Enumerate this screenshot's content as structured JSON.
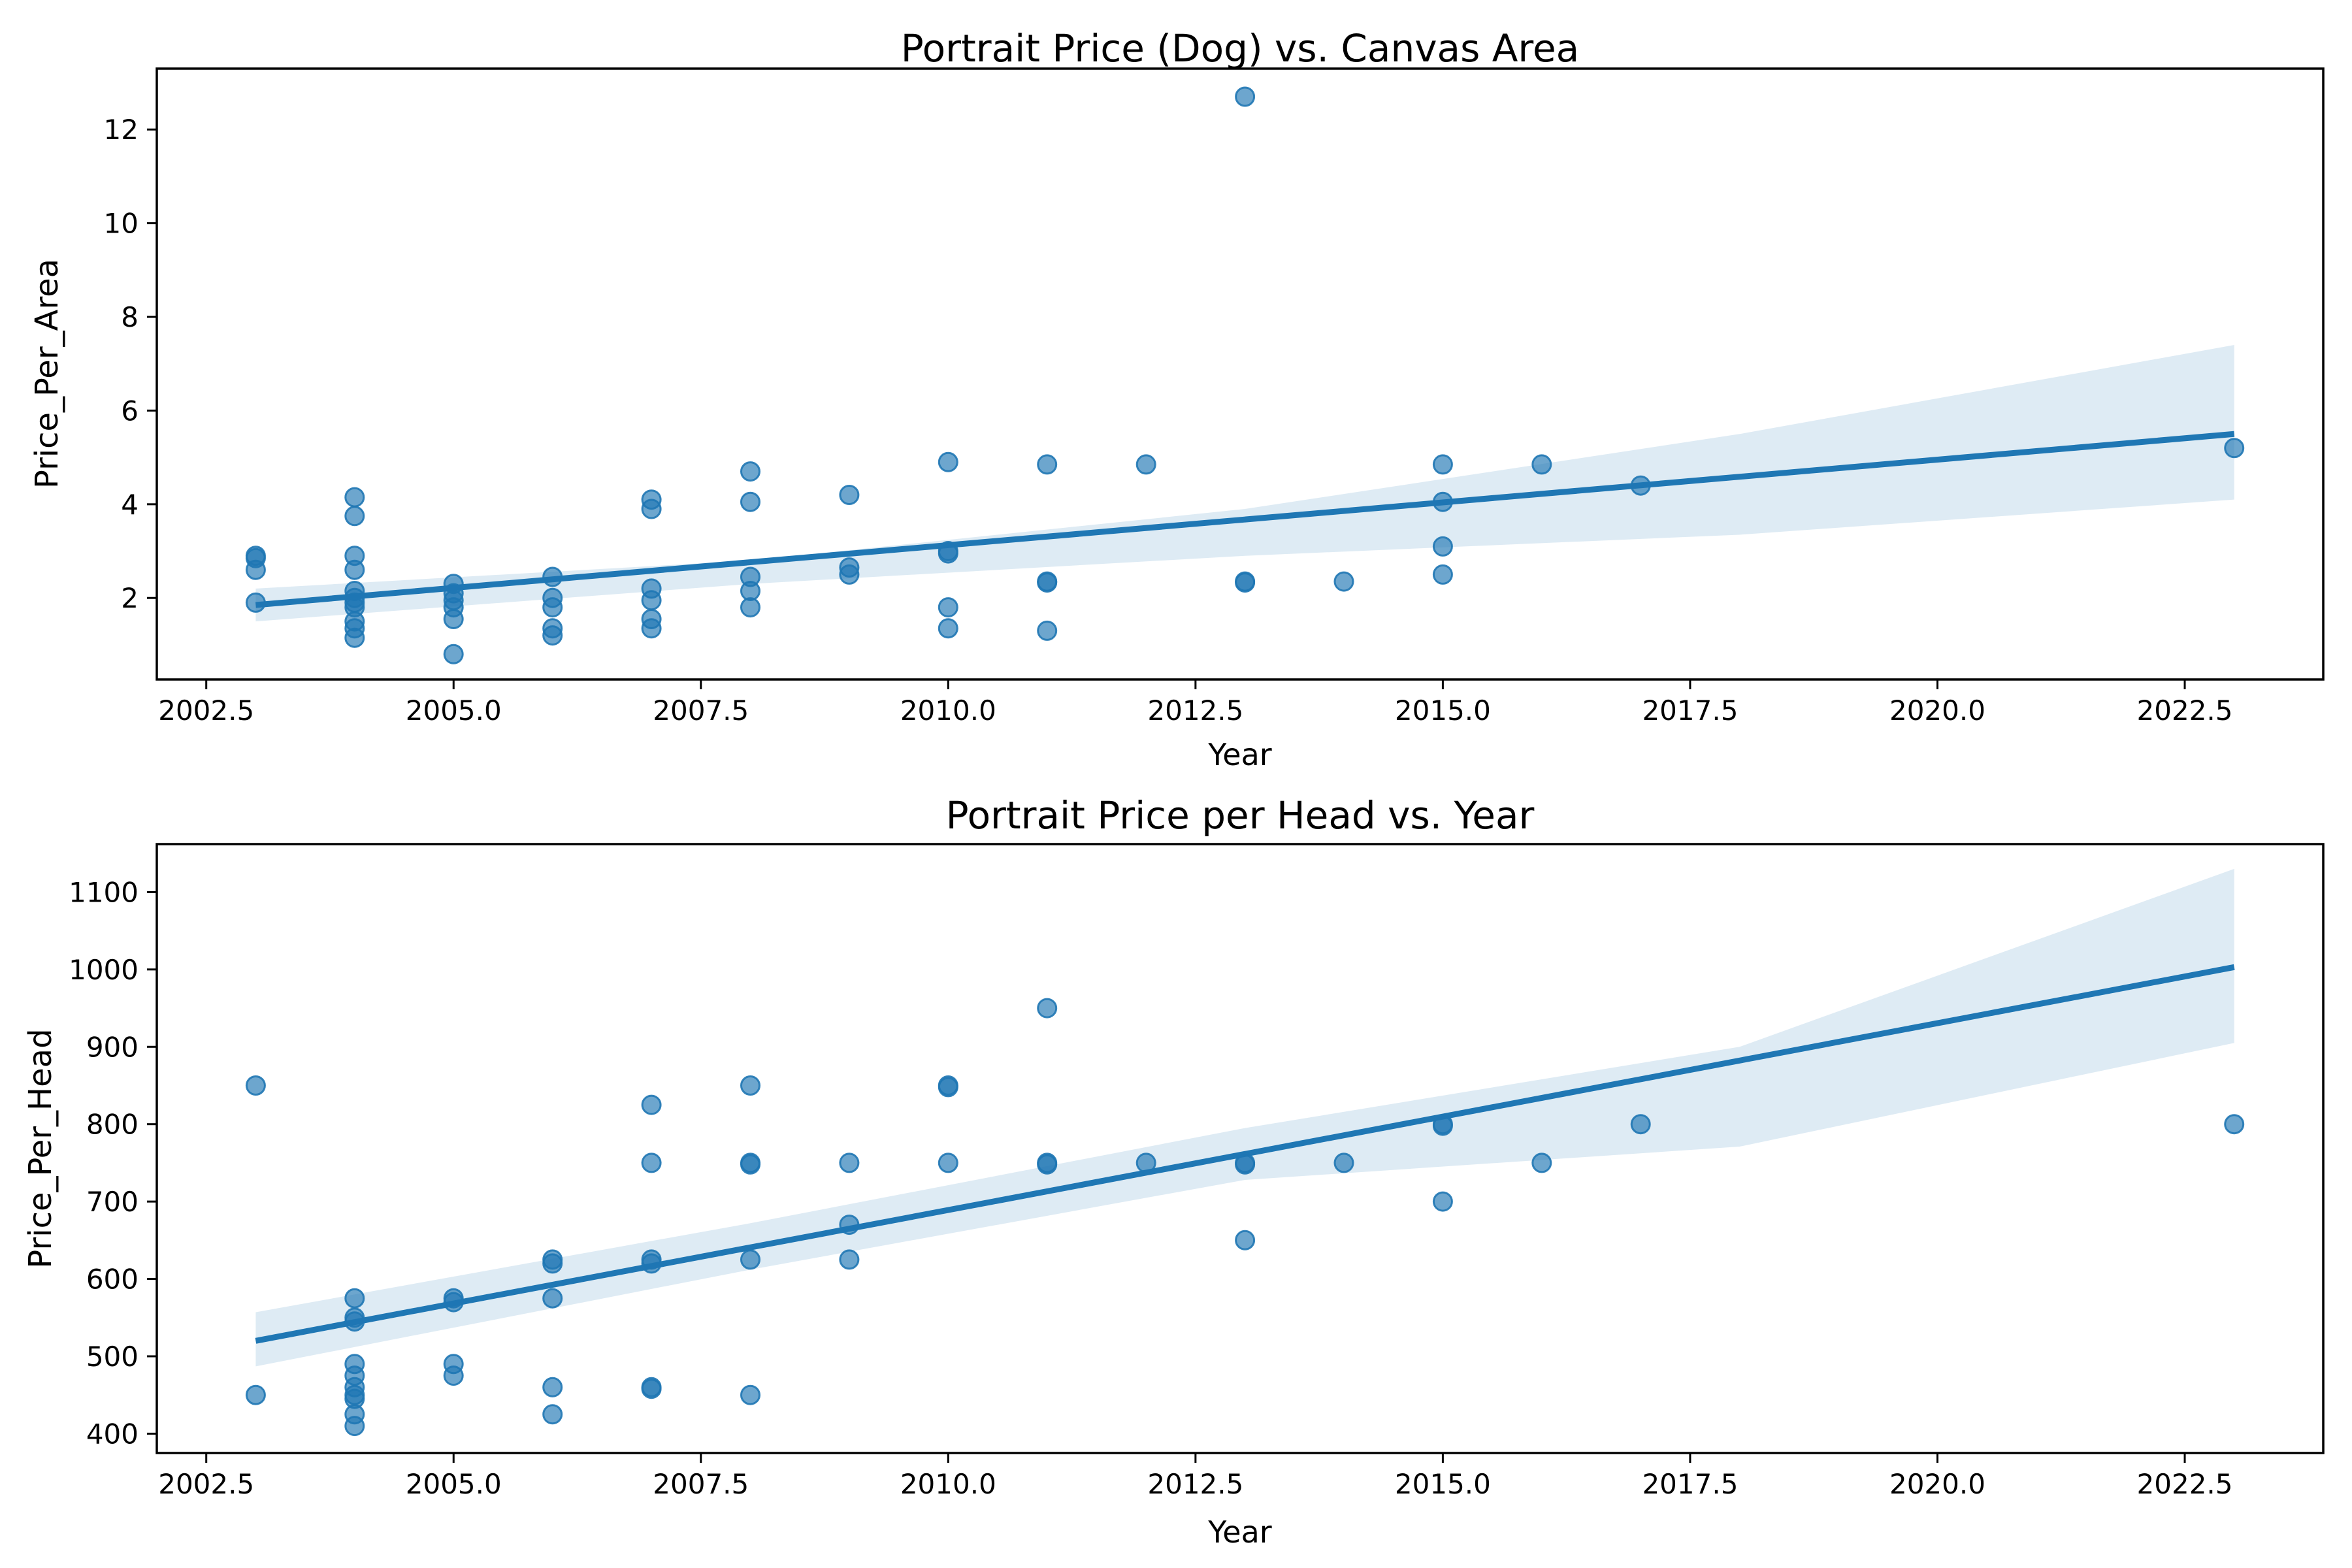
{
  "figure": {
    "background": "#ffffff",
    "accent_color": "#1f77b4",
    "band_color": "#1f77b4",
    "frame_color": "#000000"
  },
  "chart_data": [
    {
      "type": "scatter",
      "title": "Portrait Price (Dog) vs. Canvas Area",
      "xlabel": "Year",
      "ylabel": "Price_Per_Area",
      "xlim": [
        2002.0,
        2023.9
      ],
      "ylim": [
        0.26,
        13.3
      ],
      "xticks": [
        2002.5,
        2005.0,
        2007.5,
        2010.0,
        2012.5,
        2015.0,
        2017.5,
        2020.0,
        2022.5
      ],
      "yticks": [
        2,
        4,
        6,
        8,
        10,
        12
      ],
      "grid": false,
      "legend": "none",
      "points": [
        [
          2003,
          2.9
        ],
        [
          2003,
          2.85
        ],
        [
          2003,
          2.6
        ],
        [
          2003,
          1.9
        ],
        [
          2004,
          4.15
        ],
        [
          2004,
          3.75
        ],
        [
          2004,
          2.9
        ],
        [
          2004,
          2.6
        ],
        [
          2004,
          2.15
        ],
        [
          2004,
          2.0
        ],
        [
          2004,
          1.9
        ],
        [
          2004,
          1.8
        ],
        [
          2004,
          1.5
        ],
        [
          2004,
          1.35
        ],
        [
          2004,
          1.15
        ],
        [
          2005,
          2.3
        ],
        [
          2005,
          2.1
        ],
        [
          2005,
          1.95
        ],
        [
          2005,
          1.8
        ],
        [
          2005,
          1.55
        ],
        [
          2005,
          0.8
        ],
        [
          2006,
          2.45
        ],
        [
          2006,
          2.0
        ],
        [
          2006,
          1.8
        ],
        [
          2006,
          1.35
        ],
        [
          2006,
          1.2
        ],
        [
          2007,
          4.1
        ],
        [
          2007,
          3.9
        ],
        [
          2007,
          2.2
        ],
        [
          2007,
          1.95
        ],
        [
          2007,
          1.55
        ],
        [
          2007,
          1.35
        ],
        [
          2008,
          4.7
        ],
        [
          2008,
          4.05
        ],
        [
          2008,
          2.45
        ],
        [
          2008,
          2.15
        ],
        [
          2008,
          1.8
        ],
        [
          2009,
          4.2
        ],
        [
          2009,
          2.65
        ],
        [
          2009,
          2.5
        ],
        [
          2010,
          4.9
        ],
        [
          2010,
          3.0
        ],
        [
          2010,
          2.95
        ],
        [
          2010,
          1.8
        ],
        [
          2010,
          1.35
        ],
        [
          2011,
          4.85
        ],
        [
          2011,
          2.35
        ],
        [
          2011,
          2.33
        ],
        [
          2011,
          1.3
        ],
        [
          2012,
          4.85
        ],
        [
          2013,
          12.7
        ],
        [
          2013,
          2.35
        ],
        [
          2013,
          2.33
        ],
        [
          2014,
          2.35
        ],
        [
          2015,
          4.85
        ],
        [
          2015,
          4.05
        ],
        [
          2015,
          3.1
        ],
        [
          2015,
          2.5
        ],
        [
          2016,
          4.85
        ],
        [
          2017,
          4.4
        ],
        [
          2023,
          5.2
        ]
      ],
      "regression_line": {
        "x": [
          2003,
          2023
        ],
        "y": [
          1.85,
          5.5
        ]
      },
      "confidence_band": {
        "x": [
          2003,
          2008,
          2013,
          2018,
          2023
        ],
        "upper": [
          2.2,
          2.8,
          3.9,
          5.5,
          7.4
        ],
        "lower": [
          1.5,
          2.3,
          2.9,
          3.35,
          4.1
        ]
      }
    },
    {
      "type": "scatter",
      "title": "Portrait Price per Head vs. Year",
      "xlabel": "Year",
      "ylabel": "Price_Per_Head",
      "xlim": [
        2002.0,
        2023.9
      ],
      "ylim": [
        375,
        1162
      ],
      "xticks": [
        2002.5,
        2005.0,
        2007.5,
        2010.0,
        2012.5,
        2015.0,
        2017.5,
        2020.0,
        2022.5
      ],
      "yticks": [
        400,
        500,
        600,
        700,
        800,
        900,
        1000,
        1100
      ],
      "grid": false,
      "legend": "none",
      "points": [
        [
          2003,
          850
        ],
        [
          2003,
          450
        ],
        [
          2004,
          575
        ],
        [
          2004,
          550
        ],
        [
          2004,
          545
        ],
        [
          2004,
          490
        ],
        [
          2004,
          475
        ],
        [
          2004,
          460
        ],
        [
          2004,
          450
        ],
        [
          2004,
          445
        ],
        [
          2004,
          425
        ],
        [
          2004,
          410
        ],
        [
          2005,
          575
        ],
        [
          2005,
          570
        ],
        [
          2005,
          490
        ],
        [
          2005,
          475
        ],
        [
          2006,
          625
        ],
        [
          2006,
          620
        ],
        [
          2006,
          575
        ],
        [
          2006,
          460
        ],
        [
          2006,
          425
        ],
        [
          2007,
          825
        ],
        [
          2007,
          750
        ],
        [
          2007,
          625
        ],
        [
          2007,
          620
        ],
        [
          2007,
          460
        ],
        [
          2007,
          458
        ],
        [
          2008,
          850
        ],
        [
          2008,
          750
        ],
        [
          2008,
          748
        ],
        [
          2008,
          625
        ],
        [
          2008,
          450
        ],
        [
          2009,
          750
        ],
        [
          2009,
          670
        ],
        [
          2009,
          625
        ],
        [
          2010,
          850
        ],
        [
          2010,
          848
        ],
        [
          2010,
          750
        ],
        [
          2011,
          950
        ],
        [
          2011,
          750
        ],
        [
          2011,
          748
        ],
        [
          2012,
          750
        ],
        [
          2013,
          750
        ],
        [
          2013,
          748
        ],
        [
          2013,
          650
        ],
        [
          2014,
          750
        ],
        [
          2015,
          800
        ],
        [
          2015,
          798
        ],
        [
          2015,
          700
        ],
        [
          2016,
          750
        ],
        [
          2017,
          800
        ],
        [
          2023,
          800
        ]
      ],
      "regression_line": {
        "x": [
          2003,
          2023
        ],
        "y": [
          520,
          1003
        ]
      },
      "confidence_band": {
        "x": [
          2003,
          2008,
          2013,
          2018,
          2023
        ],
        "upper": [
          557,
          672,
          795,
          900,
          1130
        ],
        "lower": [
          487,
          612,
          728,
          771,
          905
        ]
      }
    }
  ]
}
